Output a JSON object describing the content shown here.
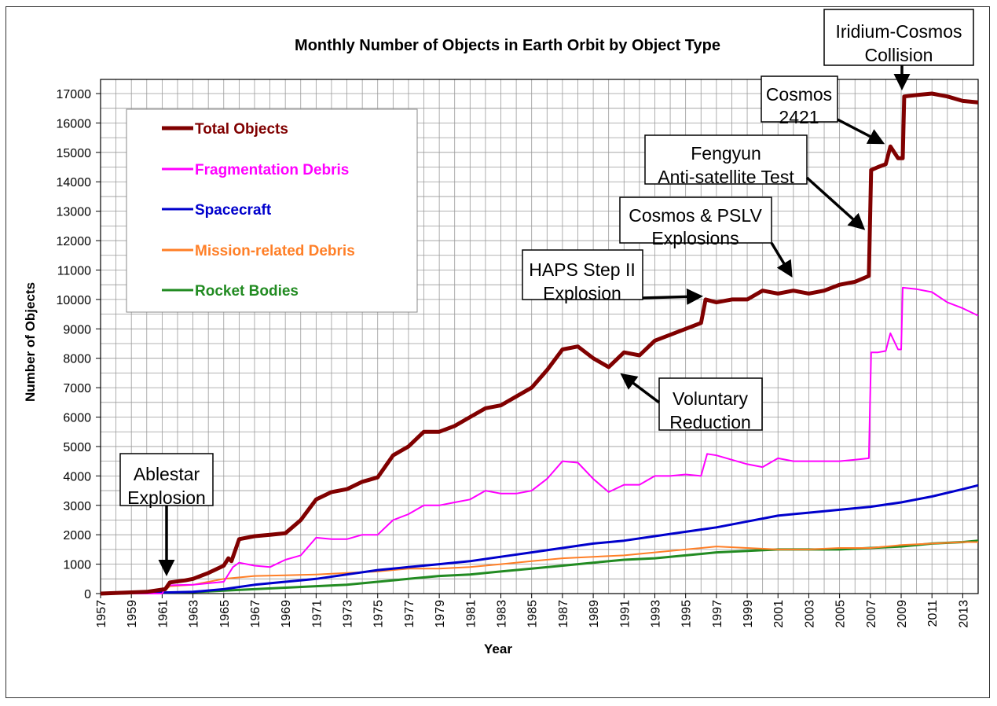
{
  "chart_data": {
    "type": "line",
    "title": "Monthly Number of Objects in Earth Orbit by Object Type",
    "xlabel": "Year",
    "ylabel": "Number of Objects",
    "xlim": [
      1957,
      2014
    ],
    "ylim": [
      0,
      17000
    ],
    "x_ticks": [
      "1957",
      "1959",
      "1961",
      "1963",
      "1965",
      "1967",
      "1969",
      "1971",
      "1973",
      "1975",
      "1977",
      "1979",
      "1981",
      "1983",
      "1985",
      "1987",
      "1989",
      "1991",
      "1993",
      "1995",
      "1997",
      "1999",
      "2001",
      "2003",
      "2005",
      "2007",
      "2009",
      "2011",
      "2013"
    ],
    "y_ticks": [
      "0",
      "1000",
      "2000",
      "3000",
      "4000",
      "5000",
      "6000",
      "7000",
      "8000",
      "9000",
      "10000",
      "11000",
      "12000",
      "13000",
      "14000",
      "15000",
      "16000",
      "17000"
    ],
    "grid": true,
    "legend_position": "top-left",
    "series": [
      {
        "name": "Total Objects",
        "color": "#800000",
        "x": [
          1957,
          1960,
          1961.2,
          1961.5,
          1962.5,
          1963,
          1964,
          1965,
          1965.3,
          1965.5,
          1966,
          1967,
          1968,
          1969,
          1970,
          1971,
          1972,
          1973,
          1974,
          1975,
          1976,
          1977,
          1978,
          1979,
          1980,
          1981,
          1982,
          1983,
          1984,
          1985,
          1986,
          1987,
          1988,
          1989,
          1990,
          1991,
          1992,
          1993,
          1994,
          1995,
          1996,
          1996.3,
          1997,
          1998,
          1999,
          2000,
          2001,
          2002,
          2003,
          2004,
          2005,
          2006,
          2006.9,
          2007.05,
          2007.5,
          2008,
          2008.3,
          2008.8,
          2009.1,
          2009.2,
          2010,
          2011,
          2012,
          2013,
          2014
        ],
        "values": [
          0,
          60,
          150,
          380,
          450,
          500,
          700,
          950,
          1200,
          1100,
          1850,
          1950,
          2000,
          2050,
          2500,
          3200,
          3450,
          3550,
          3800,
          3950,
          4700,
          5000,
          5500,
          5500,
          5700,
          6000,
          6300,
          6400,
          6700,
          7000,
          7600,
          8300,
          8400,
          8000,
          7700,
          8200,
          8100,
          8600,
          8800,
          9000,
          9200,
          10000,
          9900,
          10000,
          10000,
          10300,
          10200,
          10300,
          10200,
          10300,
          10500,
          10600,
          10800,
          14400,
          14500,
          14600,
          15200,
          14800,
          14800,
          16900,
          16950,
          17000,
          16900,
          16750,
          16700
        ],
        "line_width": 5
      },
      {
        "name": "Fragmentation Debris",
        "color": "#ff00ff",
        "x": [
          1957,
          1961,
          1961.3,
          1963,
          1964,
          1965,
          1965.6,
          1966,
          1967,
          1968,
          1969,
          1970,
          1971,
          1972,
          1973,
          1974,
          1975,
          1976,
          1977,
          1978,
          1979,
          1980,
          1981,
          1982,
          1983,
          1984,
          1985,
          1986,
          1987,
          1988,
          1989,
          1990,
          1991,
          1992,
          1993,
          1994,
          1995,
          1996,
          1996.4,
          1997,
          1998,
          1999,
          2000,
          2001,
          2002,
          2003,
          2004,
          2005,
          2006,
          2006.9,
          2007.05,
          2007.5,
          2008,
          2008.3,
          2008.8,
          2009.0,
          2009.1,
          2010,
          2011,
          2012,
          2013,
          2014
        ],
        "values": [
          0,
          0,
          280,
          300,
          350,
          400,
          900,
          1050,
          950,
          900,
          1150,
          1300,
          1900,
          1850,
          1850,
          2000,
          2000,
          2500,
          2700,
          3000,
          3000,
          3100,
          3200,
          3500,
          3400,
          3400,
          3500,
          3900,
          4500,
          4450,
          3900,
          3450,
          3700,
          3700,
          4000,
          4000,
          4050,
          4000,
          4750,
          4700,
          4550,
          4400,
          4300,
          4600,
          4500,
          4500,
          4500,
          4500,
          4550,
          4600,
          8200,
          8200,
          8250,
          8850,
          8300,
          8300,
          10400,
          10350,
          10250,
          9900,
          9700,
          9450
        ],
        "line_width": 2
      },
      {
        "name": "Spacecraft",
        "color": "#0000cc",
        "x": [
          1957,
          1960,
          1963,
          1965,
          1967,
          1969,
          1971,
          1973,
          1975,
          1977,
          1979,
          1981,
          1983,
          1985,
          1987,
          1989,
          1991,
          1993,
          1995,
          1997,
          1999,
          2001,
          2003,
          2005,
          2007,
          2009,
          2011,
          2013,
          2014
        ],
        "values": [
          0,
          20,
          60,
          150,
          300,
          400,
          500,
          650,
          800,
          900,
          1000,
          1100,
          1250,
          1400,
          1550,
          1700,
          1800,
          1950,
          2100,
          2250,
          2450,
          2650,
          2750,
          2850,
          2950,
          3100,
          3300,
          3550,
          3680
        ],
        "line_width": 3
      },
      {
        "name": "Mission-related Debris",
        "color": "#ff7f27",
        "x": [
          1957,
          1961,
          1961.5,
          1963,
          1965,
          1967,
          1969,
          1971,
          1973,
          1975,
          1977,
          1979,
          1981,
          1983,
          1985,
          1987,
          1989,
          1991,
          1993,
          1995,
          1997,
          1999,
          2001,
          2003,
          2005,
          2007,
          2009,
          2011,
          2013,
          2014
        ],
        "values": [
          0,
          20,
          250,
          300,
          500,
          600,
          620,
          650,
          700,
          750,
          850,
          850,
          900,
          1000,
          1100,
          1200,
          1250,
          1300,
          1400,
          1500,
          1600,
          1550,
          1500,
          1500,
          1550,
          1550,
          1650,
          1700,
          1750,
          1750
        ],
        "line_width": 2
      },
      {
        "name": "Rocket Bodies",
        "color": "#228b22",
        "x": [
          1957,
          1960,
          1963,
          1965,
          1967,
          1969,
          1971,
          1973,
          1975,
          1977,
          1979,
          1981,
          1983,
          1985,
          1987,
          1989,
          1991,
          1993,
          1995,
          1997,
          1999,
          2001,
          2003,
          2005,
          2007,
          2009,
          2011,
          2013,
          2014
        ],
        "values": [
          0,
          20,
          50,
          100,
          150,
          200,
          250,
          300,
          400,
          500,
          600,
          650,
          750,
          850,
          950,
          1050,
          1150,
          1200,
          1300,
          1400,
          1450,
          1500,
          1500,
          1500,
          1550,
          1600,
          1700,
          1750,
          1800
        ],
        "line_width": 3
      }
    ],
    "annotations": [
      {
        "id": "ablestar",
        "text": [
          "Ablestar",
          "Explosion"
        ]
      },
      {
        "id": "haps",
        "text": [
          "HAPS Step II",
          "Explosion"
        ]
      },
      {
        "id": "voluntary",
        "text": [
          "Voluntary",
          "Reduction"
        ]
      },
      {
        "id": "cosmos-pslv",
        "text": [
          "Cosmos & PSLV",
          "Explosions"
        ]
      },
      {
        "id": "fengyun",
        "text": [
          "Fengyun",
          "Anti-satellite Test"
        ]
      },
      {
        "id": "cosmos2421",
        "text": [
          "Cosmos",
          "2421"
        ]
      },
      {
        "id": "iridium",
        "text": [
          "Iridium-Cosmos",
          "Collision"
        ]
      }
    ]
  }
}
